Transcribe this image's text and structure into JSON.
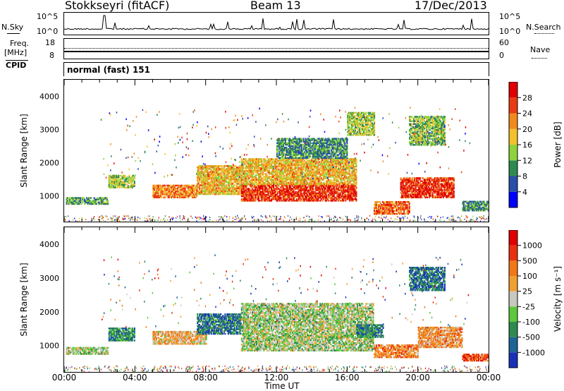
{
  "header": {
    "station": "Stokkseyri (fitACF)",
    "beam": "Beam 13",
    "date": "17/Dec/2013"
  },
  "nsky_panel": {
    "left_label": "N.Sky",
    "right_label": "N.Search",
    "left_ticks": [
      "10^5",
      "10^0"
    ],
    "right_ticks": [
      "10^5",
      "10^0"
    ]
  },
  "freq_panel": {
    "left_label_1": "Freq.",
    "left_label_2": "[MHz]",
    "right_label": "Nave",
    "left_ticks": [
      "18",
      "8"
    ],
    "right_ticks": [
      "60",
      "0"
    ]
  },
  "cpid_panel": {
    "left_label": "CPID",
    "mode_text": "normal (fast) 151"
  },
  "x_axis": {
    "ticks": [
      "00:00",
      "04:00",
      "08:00",
      "12:00",
      "16:00",
      "20:00",
      "00:00"
    ],
    "label": "Time UT"
  },
  "chart_data": [
    {
      "type": "heatmap",
      "title": "",
      "xlabel": "Time UT",
      "ylabel": "Slant Range [km]",
      "x_range": [
        "00:00",
        "24:00"
      ],
      "ylim": [
        180,
        4500
      ],
      "y_ticks": [
        "1000",
        "2000",
        "3000",
        "4000"
      ],
      "colorbar": {
        "label": "Power [dB]",
        "ticks": [
          "4",
          "8",
          "12",
          "16",
          "20",
          "24",
          "28"
        ],
        "colors": [
          "#0000ff",
          "#2850a8",
          "#2e8a4e",
          "#8ed23c",
          "#f2c12c",
          "#f08a1e",
          "#ea3a14",
          "#e00000"
        ]
      },
      "regions": [
        {
          "t_start": 0.1,
          "t_end": 2.5,
          "r_low": 700,
          "r_high": 900,
          "level": 0.35
        },
        {
          "t_start": 2.5,
          "t_end": 4.0,
          "r_low": 1200,
          "r_high": 1600,
          "level": 0.45
        },
        {
          "t_start": 5.0,
          "t_end": 7.5,
          "r_low": 900,
          "r_high": 1300,
          "level": 0.7
        },
        {
          "t_start": 7.5,
          "t_end": 10.0,
          "r_low": 1000,
          "r_high": 1900,
          "level": 0.6
        },
        {
          "t_start": 10.0,
          "t_end": 16.5,
          "r_low": 800,
          "r_high": 1300,
          "level": 0.85
        },
        {
          "t_start": 10.0,
          "t_end": 16.5,
          "r_low": 1300,
          "r_high": 2100,
          "level": 0.6
        },
        {
          "t_start": 12.0,
          "t_end": 16.0,
          "r_low": 2100,
          "r_high": 2700,
          "level": 0.3
        },
        {
          "t_start": 16.0,
          "t_end": 17.5,
          "r_low": 2800,
          "r_high": 3500,
          "level": 0.45
        },
        {
          "t_start": 17.5,
          "t_end": 19.5,
          "r_low": 400,
          "r_high": 800,
          "level": 0.75
        },
        {
          "t_start": 19.0,
          "t_end": 22.0,
          "r_low": 900,
          "r_high": 1500,
          "level": 0.85
        },
        {
          "t_start": 19.5,
          "t_end": 21.5,
          "r_low": 2500,
          "r_high": 3400,
          "level": 0.4
        },
        {
          "t_start": 22.5,
          "t_end": 24.0,
          "r_low": 500,
          "r_high": 800,
          "level": 0.3
        }
      ]
    },
    {
      "type": "heatmap",
      "title": "",
      "xlabel": "Time UT",
      "ylabel": "Slant Range [km]",
      "x_range": [
        "00:00",
        "24:00"
      ],
      "ylim": [
        180,
        4500
      ],
      "y_ticks": [
        "1000",
        "2000",
        "3000",
        "4000"
      ],
      "colorbar": {
        "label": "Velocity [m s⁻¹]",
        "ticks": [
          "1000",
          "500",
          "100",
          "25",
          "-25",
          "-100",
          "-500",
          "-1000"
        ],
        "colors": [
          "#1830b8",
          "#1e6496",
          "#2e8a4e",
          "#5cc83c",
          "#c8c8c0",
          "#f0a030",
          "#f07818",
          "#e83010",
          "#e00000"
        ]
      },
      "regions": [
        {
          "t_start": 0.1,
          "t_end": 2.5,
          "r_low": 700,
          "r_high": 900,
          "level": 0.45
        },
        {
          "t_start": 2.5,
          "t_end": 4.0,
          "r_low": 1100,
          "r_high": 1500,
          "level": 0.25
        },
        {
          "t_start": 5.0,
          "t_end": 8.0,
          "r_low": 1000,
          "r_high": 1400,
          "level": 0.6
        },
        {
          "t_start": 7.5,
          "t_end": 10.0,
          "r_low": 1300,
          "r_high": 1900,
          "level": 0.2
        },
        {
          "t_start": 10.0,
          "t_end": 17.5,
          "r_low": 800,
          "r_high": 2200,
          "level": 0.45
        },
        {
          "t_start": 16.5,
          "t_end": 18.0,
          "r_low": 1200,
          "r_high": 1600,
          "level": 0.25
        },
        {
          "t_start": 17.5,
          "t_end": 20.0,
          "r_low": 600,
          "r_high": 1000,
          "level": 0.7
        },
        {
          "t_start": 20.0,
          "t_end": 22.5,
          "r_low": 900,
          "r_high": 1500,
          "level": 0.65
        },
        {
          "t_start": 19.5,
          "t_end": 21.5,
          "r_low": 2600,
          "r_high": 3300,
          "level": 0.2
        },
        {
          "t_start": 22.5,
          "t_end": 24.0,
          "r_low": 500,
          "r_high": 700,
          "level": 0.8
        }
      ]
    }
  ]
}
